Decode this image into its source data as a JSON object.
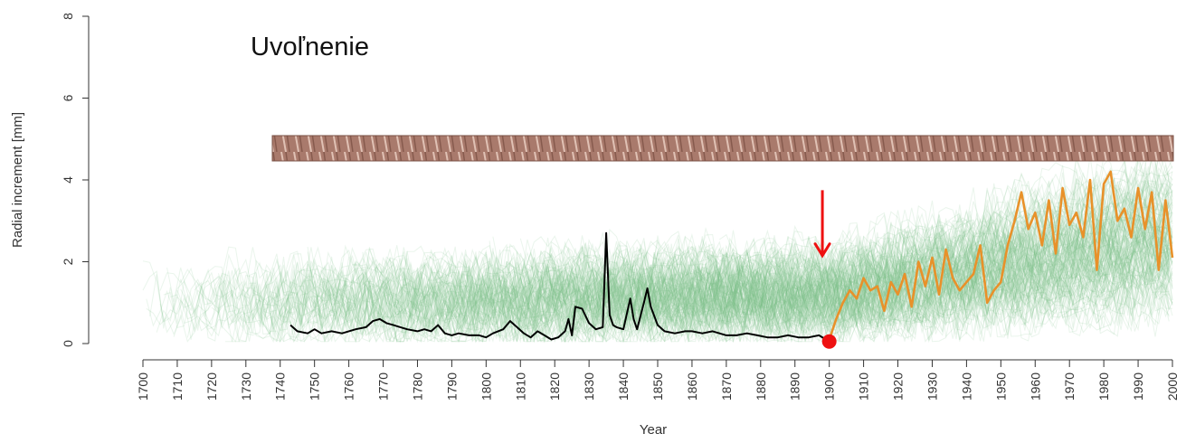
{
  "chart_data": {
    "type": "line",
    "annotation": "Uvoľnenie",
    "xlabel": "Year",
    "ylabel": "Radial increment [mm]",
    "xlim": [
      1700,
      2000
    ],
    "ylim": [
      0,
      8
    ],
    "x_ticks": [
      "1700",
      "1710",
      "1720",
      "1730",
      "1740",
      "1750",
      "1760",
      "1770",
      "1780",
      "1790",
      "1800",
      "1810",
      "1820",
      "1830",
      "1840",
      "1850",
      "1860",
      "1870",
      "1880",
      "1890",
      "1900",
      "1910",
      "1920",
      "1930",
      "1940",
      "1950",
      "1960",
      "1970",
      "1980",
      "1990",
      "2000"
    ],
    "y_ticks": [
      "0",
      "2",
      "4",
      "6",
      "8"
    ],
    "grid": false,
    "legend": "none",
    "release_year": 1900,
    "arrow_year": 1898,
    "colors": {
      "background_series": "#7fbf8a",
      "before_release": "#000000",
      "after_release": "#e8912a",
      "release_marker": "#ee1111",
      "arrow": "#ee1111",
      "core_image": "#a9786a"
    },
    "series": [
      {
        "role": "before-release",
        "x": [
          1743,
          1745,
          1748,
          1750,
          1752,
          1755,
          1758,
          1760,
          1762,
          1765,
          1767,
          1769,
          1771,
          1773,
          1775,
          1777,
          1780,
          1782,
          1784,
          1786,
          1788,
          1790,
          1792,
          1795,
          1798,
          1800,
          1802,
          1805,
          1807,
          1809,
          1811,
          1813,
          1815,
          1817,
          1819,
          1821,
          1823,
          1824,
          1825,
          1826,
          1828,
          1830,
          1832,
          1834,
          1835,
          1836,
          1837,
          1838,
          1840,
          1842,
          1843,
          1844,
          1846,
          1847,
          1848,
          1850,
          1852,
          1855,
          1858,
          1860,
          1863,
          1866,
          1868,
          1870,
          1873,
          1876,
          1879,
          1882,
          1885,
          1888,
          1891,
          1894,
          1897,
          1899
        ],
        "y": [
          0.45,
          0.3,
          0.25,
          0.35,
          0.25,
          0.3,
          0.25,
          0.3,
          0.35,
          0.4,
          0.55,
          0.6,
          0.5,
          0.45,
          0.4,
          0.35,
          0.3,
          0.35,
          0.3,
          0.45,
          0.25,
          0.2,
          0.25,
          0.2,
          0.2,
          0.15,
          0.25,
          0.35,
          0.55,
          0.4,
          0.25,
          0.15,
          0.3,
          0.2,
          0.1,
          0.15,
          0.3,
          0.6,
          0.2,
          0.9,
          0.85,
          0.5,
          0.35,
          0.4,
          2.7,
          0.7,
          0.45,
          0.4,
          0.35,
          1.1,
          0.6,
          0.35,
          1.0,
          1.35,
          0.9,
          0.45,
          0.3,
          0.25,
          0.3,
          0.3,
          0.25,
          0.3,
          0.25,
          0.2,
          0.2,
          0.25,
          0.2,
          0.15,
          0.15,
          0.2,
          0.15,
          0.15,
          0.2,
          0.1
        ]
      },
      {
        "role": "after-release",
        "x": [
          1900,
          1902,
          1904,
          1906,
          1908,
          1910,
          1912,
          1914,
          1916,
          1918,
          1920,
          1922,
          1924,
          1926,
          1928,
          1930,
          1932,
          1934,
          1936,
          1938,
          1940,
          1942,
          1944,
          1946,
          1948,
          1950,
          1952,
          1954,
          1956,
          1958,
          1960,
          1962,
          1964,
          1966,
          1968,
          1970,
          1972,
          1974,
          1976,
          1978,
          1980,
          1982,
          1984,
          1986,
          1988,
          1990,
          1992,
          1994,
          1996,
          1998,
          2000
        ],
        "y": [
          0.1,
          0.6,
          1.0,
          1.3,
          1.1,
          1.6,
          1.3,
          1.4,
          0.8,
          1.5,
          1.2,
          1.7,
          0.9,
          2.0,
          1.4,
          2.1,
          1.2,
          2.3,
          1.6,
          1.3,
          1.5,
          1.7,
          2.4,
          1.0,
          1.3,
          1.5,
          2.4,
          3.0,
          3.7,
          2.8,
          3.2,
          2.4,
          3.5,
          2.2,
          3.8,
          2.9,
          3.2,
          2.6,
          4.0,
          1.8,
          3.9,
          4.2,
          3.0,
          3.3,
          2.6,
          3.8,
          2.8,
          3.7,
          1.8,
          3.5,
          2.1
        ]
      }
    ]
  }
}
